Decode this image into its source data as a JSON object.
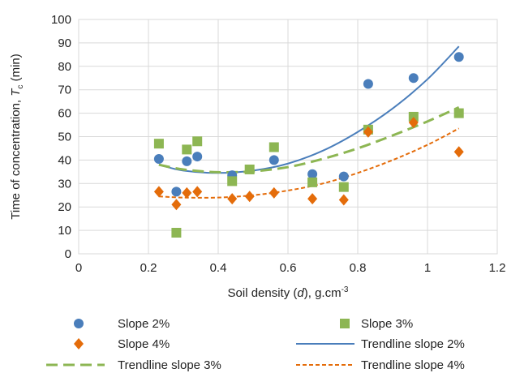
{
  "chart_data": {
    "type": "scatter",
    "xlabel": {
      "pre": "Soil density (",
      "var": "d",
      "post": "), g.cm",
      "sup": "-3"
    },
    "ylabel": {
      "pre": "Time of concentration, ",
      "var": "T",
      "sub": "c",
      "post": " (min)"
    },
    "xlim": [
      0,
      1.2
    ],
    "ylim": [
      0,
      100
    ],
    "xticks": [
      0,
      0.2,
      0.4,
      0.6,
      0.8,
      1,
      1.2
    ],
    "xtick_labels": [
      "0",
      "0.2",
      "0.4",
      "0.6",
      "0.8",
      "1",
      "1.2"
    ],
    "yticks": [
      0,
      10,
      20,
      30,
      40,
      50,
      60,
      70,
      80,
      90,
      100
    ],
    "ytick_labels": [
      "0",
      "10",
      "20",
      "30",
      "40",
      "50",
      "60",
      "70",
      "80",
      "90",
      "100"
    ],
    "grid": true,
    "legend_position": "bottom",
    "series": [
      {
        "name": "Slope 2%",
        "marker": "circle",
        "color": "#4a7ebb",
        "x": [
          0.23,
          0.28,
          0.31,
          0.34,
          0.44,
          0.56,
          0.67,
          0.76,
          0.83,
          0.96,
          1.09
        ],
        "y": [
          40.5,
          26.5,
          39.5,
          41.5,
          33.5,
          40.0,
          34.0,
          33.0,
          72.5,
          75.0,
          84.0
        ]
      },
      {
        "name": "Slope 3%",
        "marker": "square",
        "color": "#8db653",
        "x": [
          0.23,
          0.28,
          0.31,
          0.34,
          0.44,
          0.49,
          0.56,
          0.67,
          0.76,
          0.83,
          0.96,
          1.09
        ],
        "y": [
          47.0,
          9.0,
          44.5,
          48.0,
          31.0,
          36.0,
          45.5,
          30.5,
          28.5,
          53.0,
          58.5,
          60.0
        ]
      },
      {
        "name": "Slope 4%",
        "marker": "diamond",
        "color": "#e46c0a",
        "x": [
          0.23,
          0.28,
          0.31,
          0.34,
          0.44,
          0.49,
          0.56,
          0.67,
          0.76,
          0.83,
          0.96,
          1.09
        ],
        "y": [
          26.5,
          21.0,
          26.0,
          26.5,
          23.5,
          24.5,
          26.0,
          23.5,
          23.0,
          52.0,
          56.0,
          43.5
        ]
      },
      {
        "name": "Trendline slope 2%",
        "line": "solid",
        "color": "#4a7ebb",
        "x": [
          0.23,
          0.3,
          0.4,
          0.5,
          0.6,
          0.7,
          0.8,
          0.9,
          1.0,
          1.09
        ],
        "y": [
          38.0,
          35.5,
          34.5,
          35.5,
          38.5,
          44.0,
          52.0,
          62.0,
          74.5,
          88.5
        ]
      },
      {
        "name": "Trendline slope 3%",
        "line": "dashed",
        "color": "#8db653",
        "x": [
          0.23,
          0.3,
          0.4,
          0.5,
          0.6,
          0.7,
          0.8,
          0.9,
          1.0,
          1.09
        ],
        "y": [
          38.0,
          36.0,
          34.8,
          35.2,
          37.0,
          40.5,
          45.0,
          50.5,
          56.5,
          62.5
        ]
      },
      {
        "name": "Trendline slope 4%",
        "line": "dotted",
        "color": "#e46c0a",
        "x": [
          0.23,
          0.3,
          0.4,
          0.5,
          0.6,
          0.7,
          0.8,
          0.9,
          1.0,
          1.09
        ],
        "y": [
          24.5,
          24.0,
          24.0,
          25.0,
          27.0,
          30.0,
          34.5,
          40.0,
          46.5,
          53.5
        ]
      }
    ]
  }
}
